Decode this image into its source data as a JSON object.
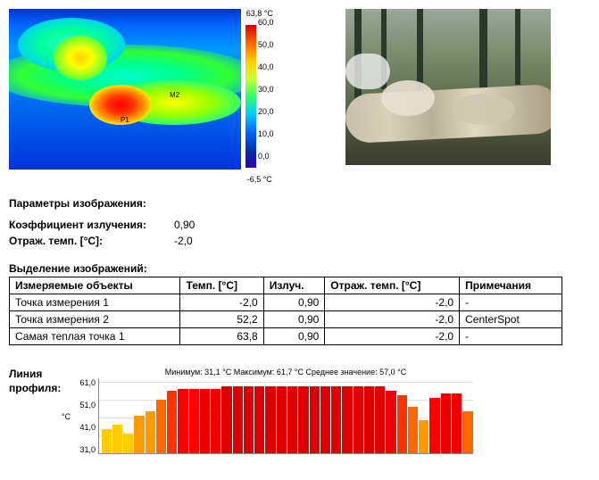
{
  "thermal": {
    "max_label": "63,8 °C",
    "min_label": "-6,5 °C",
    "colorbar_ticks": [
      "60,0",
      "50,0",
      "40,0",
      "30,0",
      "20,0",
      "10,0",
      "0,0"
    ],
    "colorbar_stops": [
      "#d40000",
      "#ff6600",
      "#ffcc00",
      "#ccff33",
      "#33ff66",
      "#00ccff",
      "#0066ff",
      "#0033aa",
      "#3300aa"
    ],
    "markers": {
      "p1": "P1",
      "m2": "M2"
    }
  },
  "params_title": "Параметры изображения:",
  "params": [
    {
      "label": "Коэффициент излучения:",
      "value": "0,90"
    },
    {
      "label": "Отраж. темп. [°C]:",
      "value": "-2,0"
    }
  ],
  "table_title": "Выделение изображений:",
  "table": {
    "columns": [
      "Измеряемые объекты",
      "Темп. [°C]",
      "Излуч.",
      "Отраж. темп. [°C]",
      "Примечания"
    ],
    "rows": [
      [
        "Точка измерения 1",
        "-2,0",
        "0,90",
        "-2,0",
        "-"
      ],
      [
        "Точка измерения 2",
        "52,2",
        "0,90",
        "-2,0",
        "CenterSpot"
      ],
      [
        "Самая теплая точка 1",
        "63,8",
        "0,90",
        "-2,0",
        "-"
      ]
    ],
    "col_align": [
      "left",
      "right",
      "right",
      "right",
      "left"
    ]
  },
  "profile": {
    "label": "Линия профиля:",
    "stats": "Минимум: 31,1 °C Максимум: 61,7 °C Среднее значение: 57,0 °C",
    "ylabels": [
      "61,0",
      "51,0",
      "41,0",
      "31,0"
    ],
    "yunit": "°C",
    "ymin": 31.0,
    "ymax": 65.0,
    "bars": [
      {
        "v": 42,
        "c": "#ffcc00"
      },
      {
        "v": 44,
        "c": "#ffcc00"
      },
      {
        "v": 40,
        "c": "#ffcc00"
      },
      {
        "v": 48,
        "c": "#ff9900"
      },
      {
        "v": 50,
        "c": "#ff9900"
      },
      {
        "v": 55,
        "c": "#ff6600"
      },
      {
        "v": 59,
        "c": "#ff3300"
      },
      {
        "v": 60,
        "c": "#ff0000"
      },
      {
        "v": 60,
        "c": "#ff0000"
      },
      {
        "v": 60,
        "c": "#ee0000"
      },
      {
        "v": 60,
        "c": "#ee0000"
      },
      {
        "v": 61,
        "c": "#dd0000"
      },
      {
        "v": 61,
        "c": "#dd0000"
      },
      {
        "v": 61,
        "c": "#dd0000"
      },
      {
        "v": 61,
        "c": "#dd0000"
      },
      {
        "v": 61,
        "c": "#dd0000"
      },
      {
        "v": 61,
        "c": "#dd0000"
      },
      {
        "v": 61,
        "c": "#dd0000"
      },
      {
        "v": 61,
        "c": "#dd0000"
      },
      {
        "v": 61,
        "c": "#dd0000"
      },
      {
        "v": 61,
        "c": "#dd0000"
      },
      {
        "v": 61,
        "c": "#dd0000"
      },
      {
        "v": 61,
        "c": "#dd0000"
      },
      {
        "v": 61,
        "c": "#dd0000"
      },
      {
        "v": 61,
        "c": "#dd0000"
      },
      {
        "v": 61,
        "c": "#dd0000"
      },
      {
        "v": 59,
        "c": "#ee0000"
      },
      {
        "v": 57,
        "c": "#ff3300"
      },
      {
        "v": 52,
        "c": "#ff6600"
      },
      {
        "v": 46,
        "c": "#ff9900"
      },
      {
        "v": 56,
        "c": "#ff0000"
      },
      {
        "v": 58,
        "c": "#ee0000"
      },
      {
        "v": 58,
        "c": "#ee0000"
      },
      {
        "v": 50,
        "c": "#ff6600"
      }
    ]
  }
}
